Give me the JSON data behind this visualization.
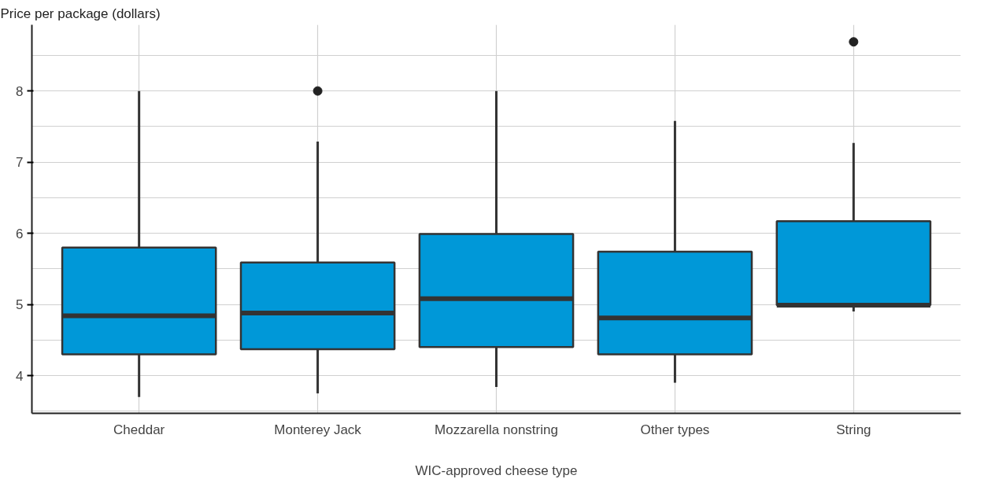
{
  "chart_data": {
    "type": "box",
    "xlabel": "WIC-approved cheese type",
    "ylabel": "Price per package (dollars)",
    "categories": [
      "Cheddar",
      "Monterey Jack",
      "Mozzarella nonstring",
      "Other types",
      "String"
    ],
    "color": "#0098d8",
    "boxes": [
      {
        "low": 3.7,
        "q1": 4.3,
        "median": 4.84,
        "q3": 5.8,
        "high": 8.0
      },
      {
        "low": 3.75,
        "q1": 4.37,
        "median": 4.88,
        "q3": 5.59,
        "high": 7.29,
        "outliers": [
          8.0
        ]
      },
      {
        "low": 3.84,
        "q1": 4.4,
        "median": 5.08,
        "q3": 5.99,
        "high": 8.0
      },
      {
        "low": 3.9,
        "q1": 4.3,
        "median": 4.81,
        "q3": 5.74,
        "high": 7.58
      },
      {
        "low": 4.9,
        "q1": 4.99,
        "median": 4.99,
        "q3": 6.17,
        "high": 7.27,
        "outliers": [
          8.69
        ]
      }
    ],
    "ylim": [
      3.47,
      8.93
    ],
    "yticks": [
      4,
      5,
      6,
      7,
      8
    ],
    "grid": true
  }
}
